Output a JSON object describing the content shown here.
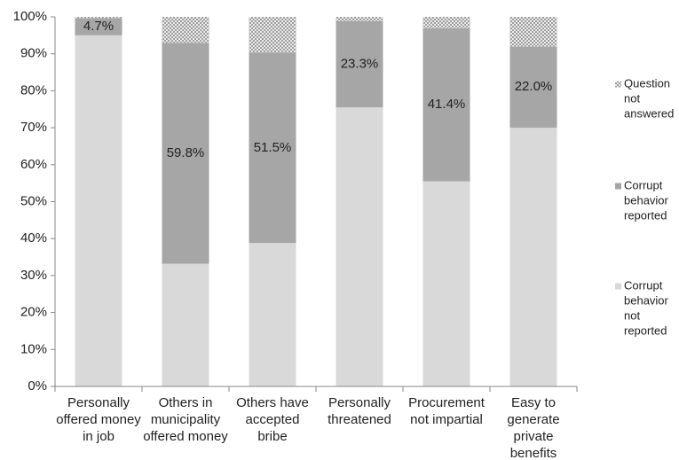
{
  "chart_data": {
    "type": "stacked_bar",
    "categories": [
      [
        "Personally",
        "offered money",
        "in job"
      ],
      [
        "Others in",
        "municipality",
        "offered money"
      ],
      [
        "Others have",
        "accepted",
        "bribe"
      ],
      [
        "Personally",
        "threatened"
      ],
      [
        "Procurement",
        "not impartial"
      ],
      [
        "Easy to",
        "generate",
        "private",
        "benefits"
      ]
    ],
    "series": [
      {
        "name": [
          "Corrupt",
          "behavior",
          "not",
          "reported"
        ],
        "color": "#d9d9d9",
        "values": [
          95.0,
          33.2,
          38.8,
          75.5,
          55.5,
          70.0
        ]
      },
      {
        "name": [
          "Corrupt",
          "behavior",
          "reported"
        ],
        "color": "#a6a6a6",
        "values": [
          4.7,
          59.8,
          51.5,
          23.3,
          41.4,
          22.0
        ],
        "value_labels": [
          "4.7%",
          "59.8%",
          "51.5%",
          "23.3%",
          "41.4%",
          "22.0%"
        ]
      },
      {
        "name": [
          "Question",
          "not",
          "answered"
        ],
        "color": "#8c8c8c",
        "pattern": "crosshatch",
        "values": [
          0.3,
          7.0,
          9.7,
          1.2,
          3.1,
          8.0
        ]
      }
    ],
    "ylim": [
      0,
      100
    ],
    "yticks": [
      {
        "value": 0,
        "label": "0%"
      },
      {
        "value": 10,
        "label": "10%"
      },
      {
        "value": 20,
        "label": "20%"
      },
      {
        "value": 30,
        "label": "30%"
      },
      {
        "value": 40,
        "label": "40%"
      },
      {
        "value": 50,
        "label": "50%"
      },
      {
        "value": 60,
        "label": "60%"
      },
      {
        "value": 70,
        "label": "70%"
      },
      {
        "value": 80,
        "label": "80%"
      },
      {
        "value": 90,
        "label": "90%"
      },
      {
        "value": 100,
        "label": "100%"
      }
    ],
    "legend": "right"
  }
}
